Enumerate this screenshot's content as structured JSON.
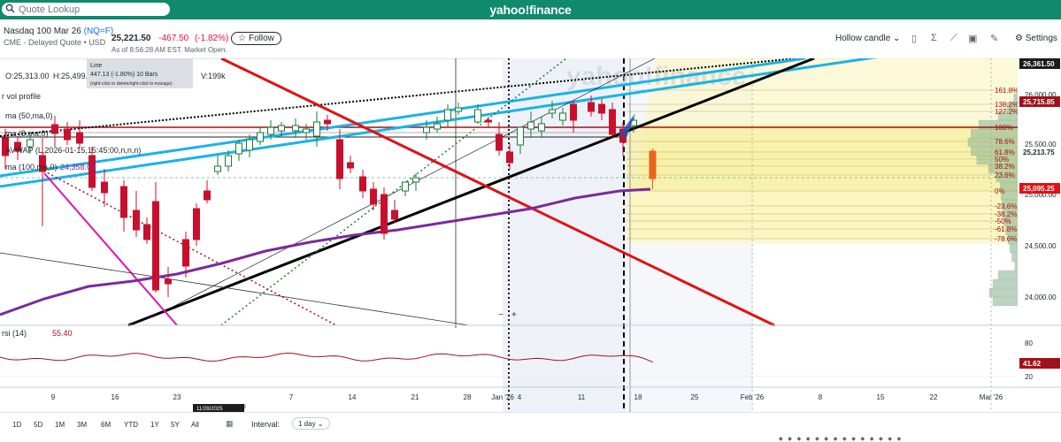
{
  "search": {
    "placeholder": "Quote Lookup",
    "icon": "search-icon"
  },
  "brand": "yahoo!finance",
  "quote": {
    "name": "Nasdaq 100 Mar 26",
    "symbol": "(NQ=F)",
    "exchange": "CME - Delayed Quote • USD",
    "price": "25,221.50",
    "change": "-467.50",
    "change_pct": "(-1.82%)",
    "as_of": "As of 8:56:28 AM EST. Market Open."
  },
  "follow_label": "Follow",
  "toolbar": {
    "chart_type": "Hollow candle",
    "settings": "Settings",
    "icons": [
      "doc-icon",
      "indicator-icon",
      "trend-icon",
      "calendar-event-icon",
      "pen-icon",
      "gear-icon"
    ]
  },
  "chart": {
    "ohlc": {
      "open": "O:25,313.00",
      "high": "H:25,499.",
      "volume": "V:199k"
    },
    "tooltip": {
      "title": "Line",
      "value": "447.13 (-1.80%) 10 Bars",
      "hint": "(right-click to delete/right-click to manage)"
    },
    "indicators": {
      "vol_profile": "r vol profile",
      "ma50": "ma (50,ma,0)",
      "ma8": "ma (8,ma,0)",
      "avwap": "AVWAP (L,2026-01-15,15:45:00,n,n,n)",
      "ma100": "ma (100,ma,0)",
      "ma100_value": "24,358.03"
    },
    "watermark": "yahoo!finance",
    "price_ticks": [
      "26,000.00",
      "25,500.00",
      "25,000.00",
      "24,500.00",
      "24,000.00"
    ],
    "price_badges": {
      "top": "26,361.50",
      "line": "25,715.85",
      "mid": "25,213.75",
      "current": "25,095.25"
    },
    "fib_labels": [
      "161.8%",
      "138.2%",
      "127.2%",
      "100%",
      "78.6%",
      "61.8%",
      "50%",
      "38.2%",
      "23.6%",
      "0%",
      "-23.6%",
      "-38.2%",
      "-50%",
      "-61.8%",
      "-78.6%"
    ],
    "zoom": {
      "minus": "−",
      "plus": "+"
    },
    "rsi": {
      "label": "rsi (14)",
      "value": "55.40",
      "ticks": [
        "80",
        "20"
      ],
      "badge": "41.62"
    },
    "x_labels": [
      "9",
      "16",
      "23",
      "7",
      "14",
      "21",
      "28",
      "Jan '26",
      "4",
      "11",
      "18",
      "25",
      "Feb '26",
      "8",
      "15",
      "22",
      "Mar '26"
    ],
    "x_partial": "5",
    "date_badge": "11/28/2025",
    "colors": {
      "up": "#1a7a3c",
      "down": "#c8102e",
      "accent": "#0f8a6c",
      "ma100": "#7b2a9c",
      "trend_blue": "#1ab3e6"
    }
  },
  "footer": {
    "ranges": [
      "1D",
      "5D",
      "1M",
      "3M",
      "6M",
      "YTD",
      "1Y",
      "5Y",
      "All"
    ],
    "interval_label": "Interval:",
    "interval_value": "1 day"
  }
}
